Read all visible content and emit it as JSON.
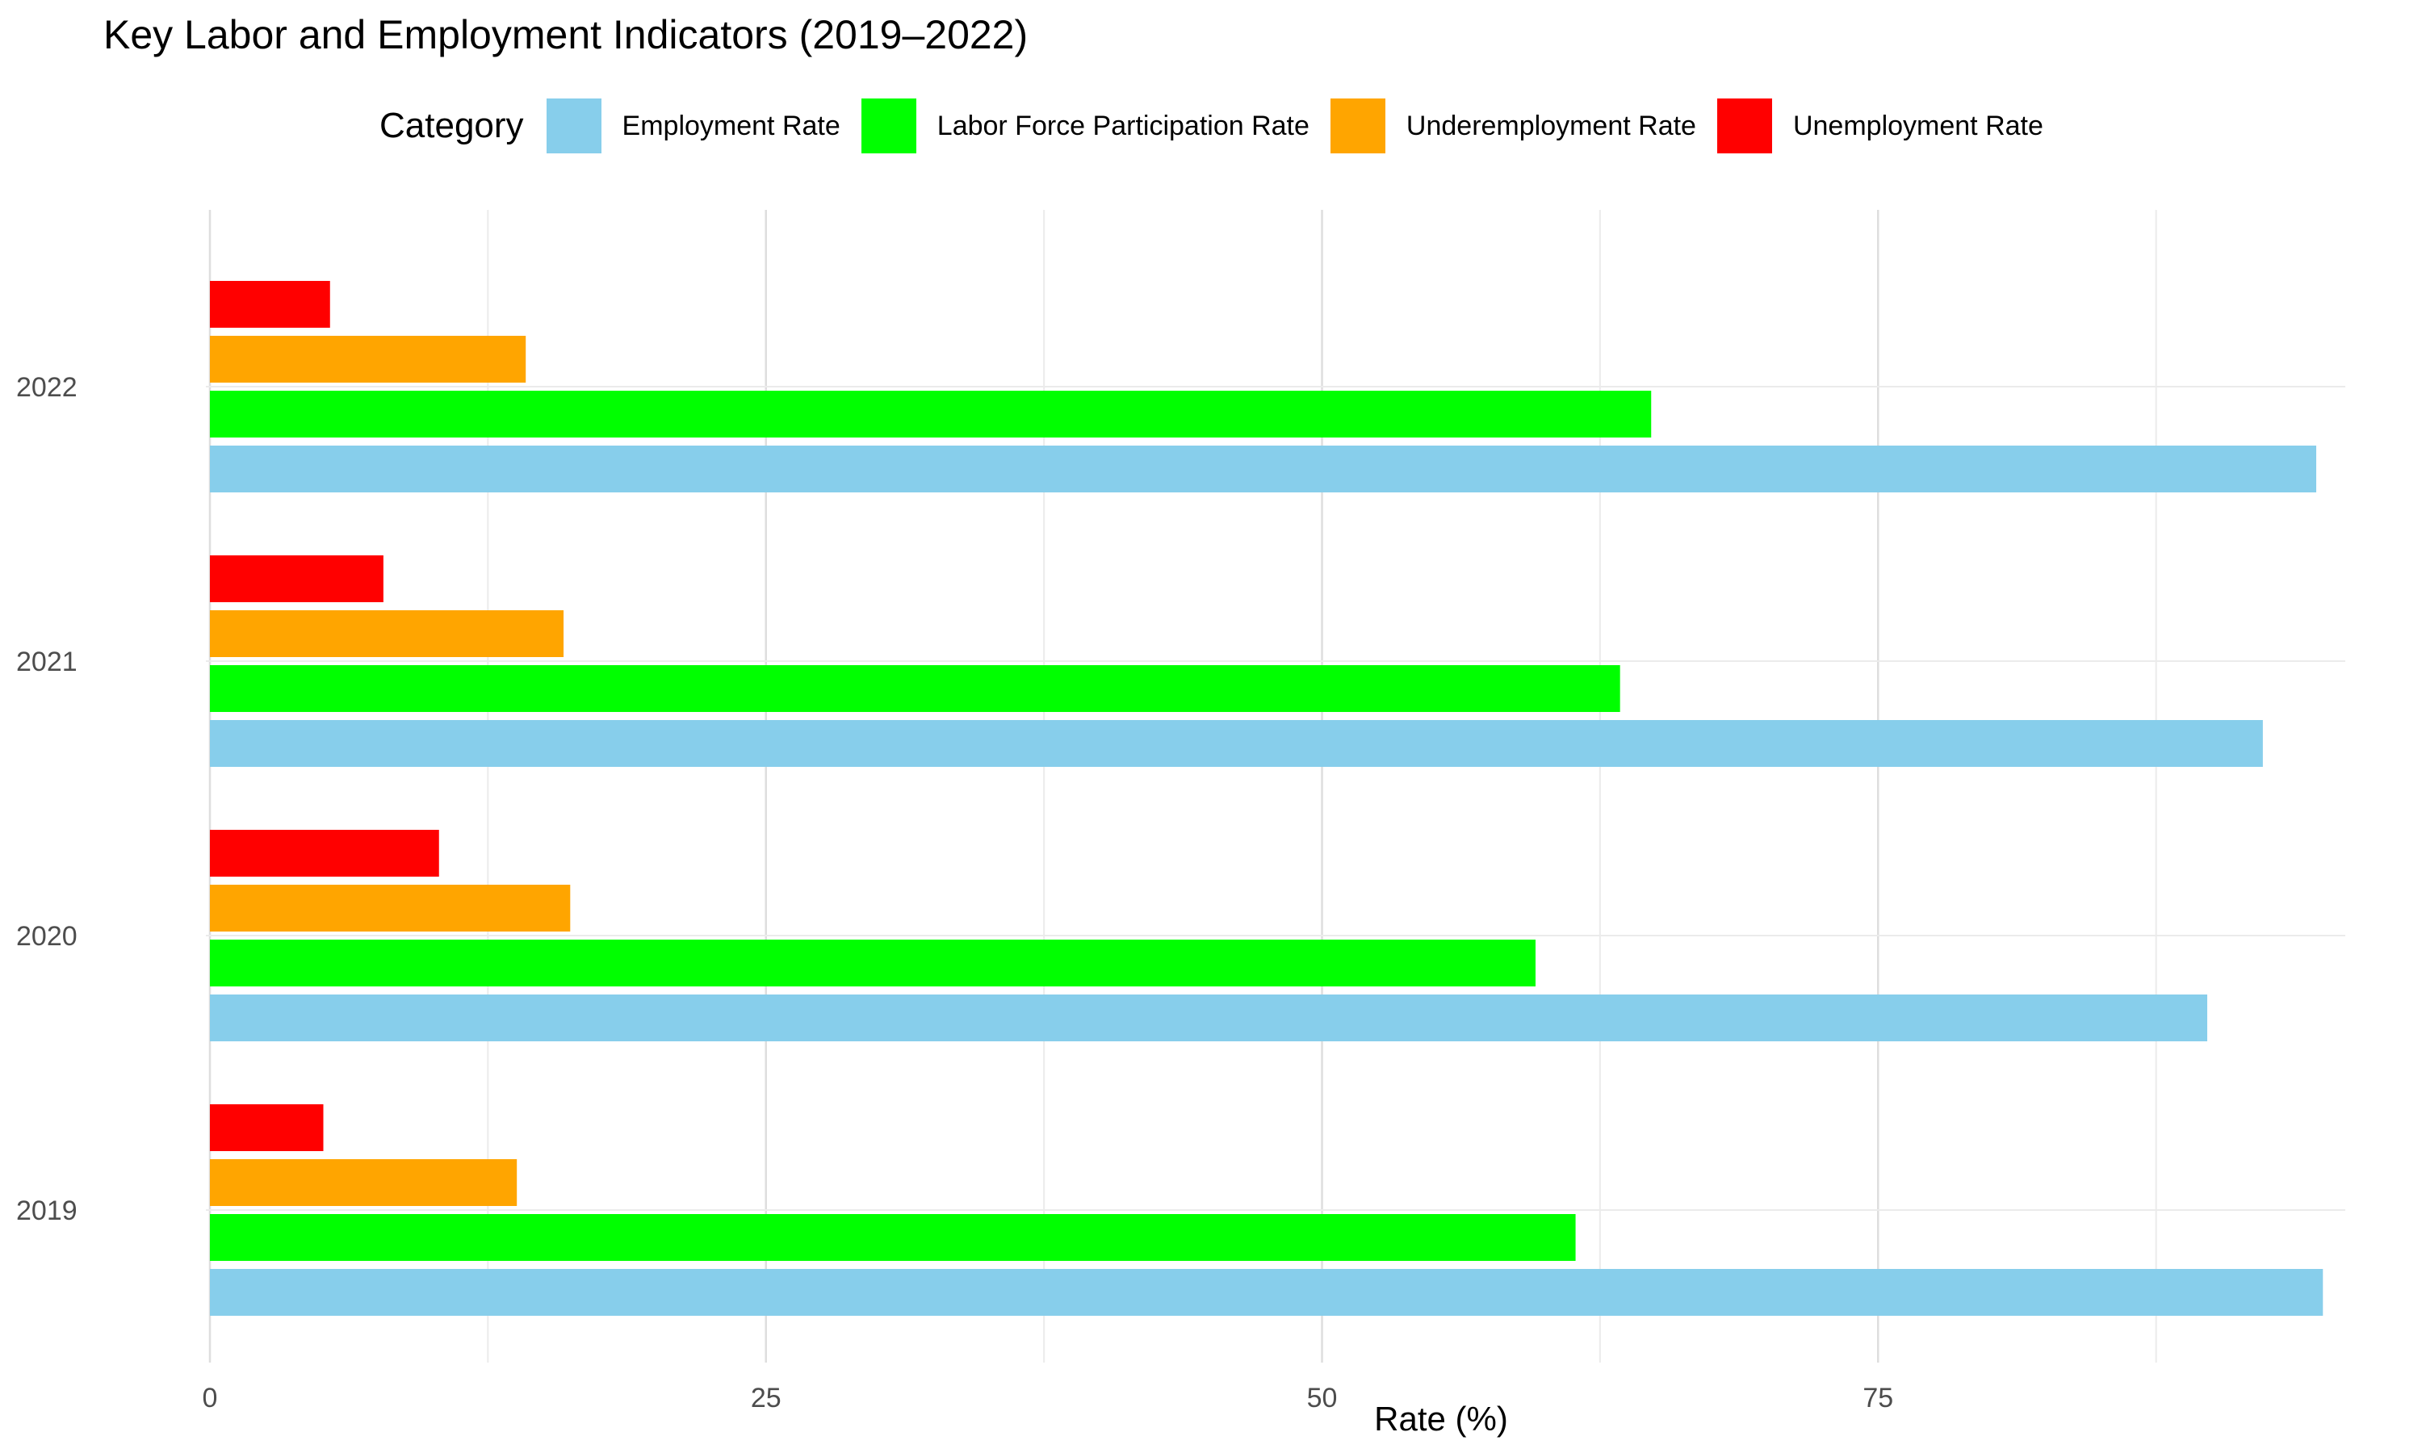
{
  "chart_data": {
    "type": "bar",
    "orientation": "horizontal",
    "title": "Key Labor and Employment Indicators (2019–2022)",
    "xlabel": "Rate (%)",
    "ylabel": "",
    "xlim": [
      0,
      95
    ],
    "x_ticks": [
      0,
      25,
      50,
      75
    ],
    "grid": true,
    "legend_title": "Category",
    "legend_position": "top",
    "categories": [
      "2019",
      "2020",
      "2021",
      "2022"
    ],
    "series": [
      {
        "name": "Employment Rate",
        "color": "#87CEEB",
        "values": [
          95.0,
          89.8,
          92.3,
          94.7
        ]
      },
      {
        "name": "Labor Force Participation Rate",
        "color": "#00FF00",
        "values": [
          61.4,
          59.6,
          63.4,
          64.8
        ]
      },
      {
        "name": "Underemployment Rate",
        "color": "#FFA500",
        "values": [
          13.8,
          16.2,
          15.9,
          14.2
        ]
      },
      {
        "name": "Unemployment Rate",
        "color": "#FF0000",
        "values": [
          5.1,
          10.3,
          7.8,
          5.4
        ]
      }
    ]
  }
}
